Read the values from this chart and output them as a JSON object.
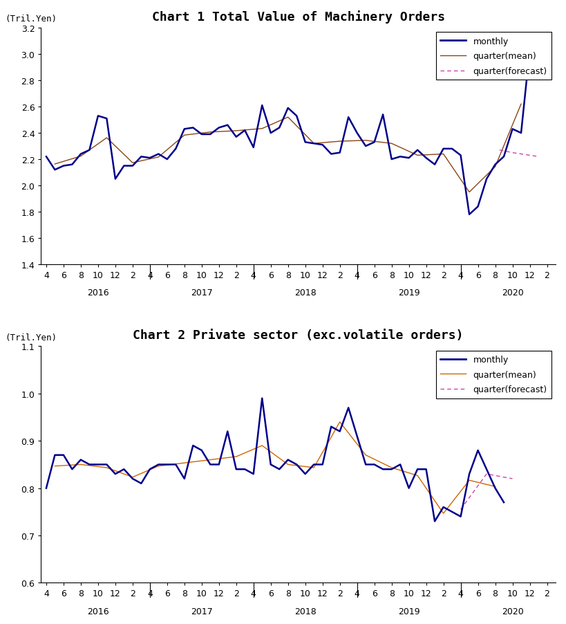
{
  "chart1_title": "Chart 1 Total Value of Machinery Orders",
  "chart2_title": "Chart 2 Private sector (exc.volatile orders)",
  "ylabel_text": "(Tril.Yen)",
  "chart1_ylim": [
    1.4,
    3.2
  ],
  "chart1_yticks": [
    1.4,
    1.6,
    1.8,
    2.0,
    2.2,
    2.4,
    2.6,
    2.8,
    3.0,
    3.2
  ],
  "chart2_ylim": [
    0.6,
    1.1
  ],
  "chart2_yticks": [
    0.6,
    0.7,
    0.8,
    0.9,
    1.0,
    1.1
  ],
  "monthly_color": "#00008B",
  "chart1_qmean_color": "#8B4513",
  "chart2_qmean_color": "#CC6600",
  "forecast_color": "#CC44AA",
  "monthly_linewidth": 1.8,
  "quarter_linewidth": 1.0,
  "title_fontsize": 13,
  "tick_fontsize": 9,
  "legend_fontsize": 9,
  "chart1_monthly": [
    2.22,
    2.12,
    2.15,
    2.16,
    2.24,
    2.27,
    2.53,
    2.51,
    2.05,
    2.15,
    2.15,
    2.22,
    2.21,
    2.24,
    2.2,
    2.28,
    2.43,
    2.44,
    2.39,
    2.39,
    2.44,
    2.46,
    2.37,
    2.42,
    2.29,
    2.61,
    2.4,
    2.44,
    2.59,
    2.53,
    2.33,
    2.32,
    2.31,
    2.24,
    2.25,
    2.52,
    2.4,
    2.3,
    2.33,
    2.54,
    2.2,
    2.22,
    2.21,
    2.27,
    2.21,
    2.16,
    2.28,
    2.28,
    2.23,
    1.78,
    1.84,
    2.05,
    2.16,
    2.22,
    2.43,
    2.4,
    3.03
  ],
  "chart2_monthly": [
    0.8,
    0.87,
    0.87,
    0.84,
    0.86,
    0.85,
    0.85,
    0.85,
    0.83,
    0.84,
    0.82,
    0.81,
    0.84,
    0.85,
    0.85,
    0.85,
    0.82,
    0.89,
    0.88,
    0.85,
    0.85,
    0.92,
    0.84,
    0.84,
    0.83,
    0.99,
    0.85,
    0.84,
    0.86,
    0.85,
    0.83,
    0.85,
    0.85,
    0.93,
    0.92,
    0.97,
    0.91,
    0.85,
    0.85,
    0.84,
    0.84,
    0.85,
    0.8,
    0.84,
    0.84,
    0.73,
    0.76,
    0.75,
    0.74,
    0.83,
    0.88,
    0.84,
    0.8,
    0.77
  ],
  "year_labels": [
    "2016",
    "2017",
    "2018",
    "2019",
    "2020"
  ],
  "month_tick_labels": [
    "4",
    "6",
    "8",
    "10",
    "12",
    "2"
  ],
  "n_years": 5
}
